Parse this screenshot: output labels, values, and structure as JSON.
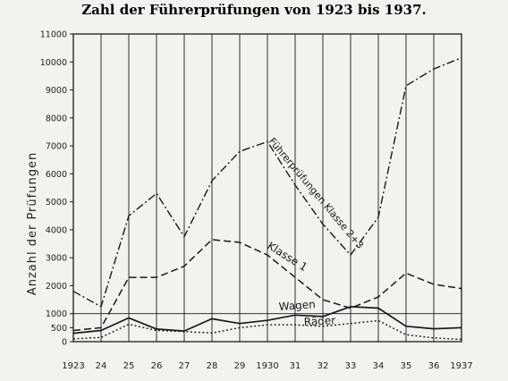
{
  "chart_data": {
    "type": "line",
    "title": "Zahl der Führerprüfungen von 1923 bis 1937.",
    "ylabel": "Anzahl der Prüfungen",
    "xlabel": "",
    "x": [
      1923,
      1924,
      1925,
      1926,
      1927,
      1928,
      1929,
      1930,
      1931,
      1932,
      1933,
      1934,
      1935,
      1936,
      1937
    ],
    "x_tick_labels": [
      "1923",
      "24",
      "25",
      "26",
      "27",
      "28",
      "29",
      "1930",
      "31",
      "32",
      "33",
      "34",
      "35",
      "36",
      "1937"
    ],
    "y_ticks": [
      0,
      500,
      1000,
      2000,
      3000,
      4000,
      5000,
      6000,
      7000,
      8000,
      9000,
      10000,
      11000
    ],
    "y_tick_labels": [
      "0",
      "500",
      "1000",
      "2000",
      "3000",
      "4000",
      "5000",
      "6000",
      "7000",
      "8000",
      "9000",
      "10000",
      "11000"
    ],
    "ylim": [
      0,
      11000
    ],
    "grid": "vertical lines at each year; horizontal reference line at 1000",
    "series": [
      {
        "name": "Führerprüfungen Klasse 2+3",
        "style": "dash-dot",
        "values": [
          1800,
          1250,
          4500,
          5300,
          3750,
          5750,
          6800,
          7150,
          5600,
          4200,
          3100,
          4450,
          9150,
          9750,
          10150
        ]
      },
      {
        "name": "Klasse 1",
        "style": "dashed",
        "values": [
          400,
          500,
          2300,
          2300,
          2700,
          3650,
          3550,
          3100,
          2300,
          1500,
          1200,
          1600,
          2450,
          2050,
          1900
        ]
      },
      {
        "name": "Wagen",
        "style": "solid",
        "values": [
          300,
          400,
          850,
          450,
          380,
          820,
          650,
          760,
          950,
          900,
          1250,
          1200,
          550,
          460,
          500
        ]
      },
      {
        "name": "Räder",
        "style": "dotted",
        "values": [
          100,
          150,
          620,
          400,
          360,
          310,
          500,
          600,
          600,
          550,
          650,
          750,
          250,
          130,
          80
        ]
      }
    ],
    "annotations": {
      "klasse23": "Führerprüfungen Klasse 2+3",
      "klasse1": "Klasse 1",
      "wagen": "Wagen",
      "raeder": "Räder"
    },
    "colors": {
      "ink": "#1a1a1a",
      "paper": "#f3f2ee"
    }
  }
}
